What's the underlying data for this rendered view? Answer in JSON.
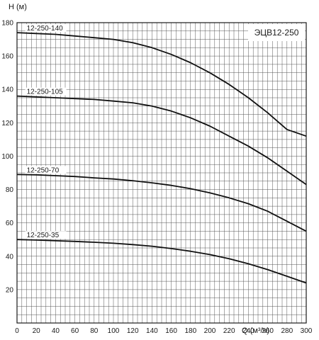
{
  "chart_data": {
    "type": "line",
    "title": "ЭЦВ12-250",
    "xlabel": "Q (м³/ч)",
    "ylabel": "H (м)",
    "xlim": [
      0,
      300
    ],
    "ylim": [
      0,
      180
    ],
    "grid": true,
    "x_ticks": [
      0,
      20,
      40,
      60,
      80,
      100,
      120,
      140,
      160,
      180,
      200,
      220,
      240,
      260,
      280,
      300
    ],
    "y_ticks": [
      20,
      40,
      60,
      80,
      100,
      120,
      140,
      160,
      180
    ],
    "series": [
      {
        "name": "12-250-140",
        "x": [
          0,
          20,
          40,
          60,
          80,
          100,
          120,
          140,
          160,
          180,
          200,
          220,
          240,
          260,
          280,
          300
        ],
        "y": [
          174,
          173.5,
          173,
          172,
          171,
          170,
          168,
          165,
          161,
          156,
          150,
          143,
          135,
          126,
          116,
          112
        ]
      },
      {
        "name": "12-250-105",
        "x": [
          0,
          20,
          40,
          60,
          80,
          100,
          120,
          140,
          160,
          180,
          200,
          220,
          240,
          260,
          280,
          300
        ],
        "y": [
          136,
          135.5,
          135,
          134.5,
          134,
          133,
          132,
          130,
          127,
          123,
          118,
          112,
          106,
          99,
          91,
          83
        ]
      },
      {
        "name": "12-250-70",
        "x": [
          0,
          20,
          40,
          60,
          80,
          100,
          120,
          140,
          160,
          180,
          200,
          220,
          240,
          260,
          280,
          300
        ],
        "y": [
          89,
          88.8,
          88.3,
          87.8,
          87,
          86.3,
          85.3,
          84,
          82.5,
          80.5,
          78,
          75,
          71.5,
          67,
          61,
          55
        ]
      },
      {
        "name": "12-250-35",
        "x": [
          0,
          20,
          40,
          60,
          80,
          100,
          120,
          140,
          160,
          180,
          200,
          220,
          240,
          260,
          280,
          300
        ],
        "y": [
          50,
          49.7,
          49.3,
          48.9,
          48.4,
          47.8,
          47,
          46,
          44.6,
          43,
          41,
          38.5,
          35.5,
          32,
          28,
          24
        ]
      }
    ]
  }
}
